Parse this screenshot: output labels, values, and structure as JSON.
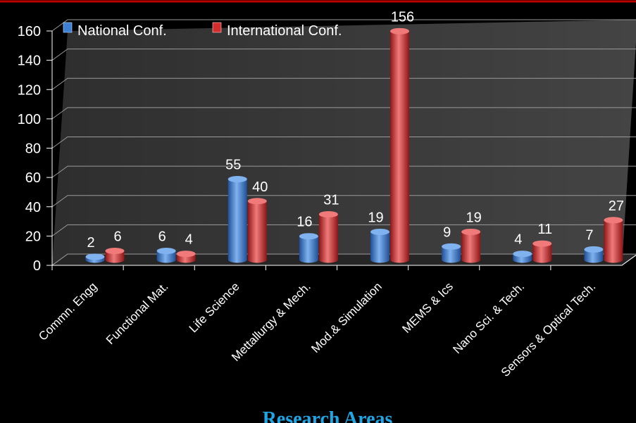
{
  "chart_data": {
    "type": "bar",
    "categories": [
      "Commn. Engg",
      "Functional Mat.",
      "Life Science",
      "Mettallurgy & Mech.",
      "Mod.& Simulation",
      "MEMS & Ics",
      "Nano Sci. & Tech.",
      "Sensors & Optical Tech."
    ],
    "series": [
      {
        "name": "National Conf.",
        "values": [
          2,
          6,
          55,
          16,
          19,
          9,
          4,
          7
        ]
      },
      {
        "name": "International Conf.",
        "values": [
          6,
          4,
          40,
          31,
          156,
          19,
          11,
          27
        ]
      }
    ],
    "xlabel": "Research Areas",
    "ylabel": "",
    "ylim": [
      0,
      160
    ],
    "yticks": [
      0,
      20,
      40,
      60,
      80,
      100,
      120,
      140,
      160
    ],
    "grid": true,
    "legend": "top-left",
    "colors": {
      "national": "#3d7fd4",
      "national_light": "#7fb2ef",
      "national_dark": "#1f4f96",
      "international": "#d42d2d",
      "international_light": "#f07a7a",
      "international_dark": "#8e1515",
      "background": "#000000",
      "wall": "#3a3a3a",
      "accent_line": "#c00000"
    }
  }
}
